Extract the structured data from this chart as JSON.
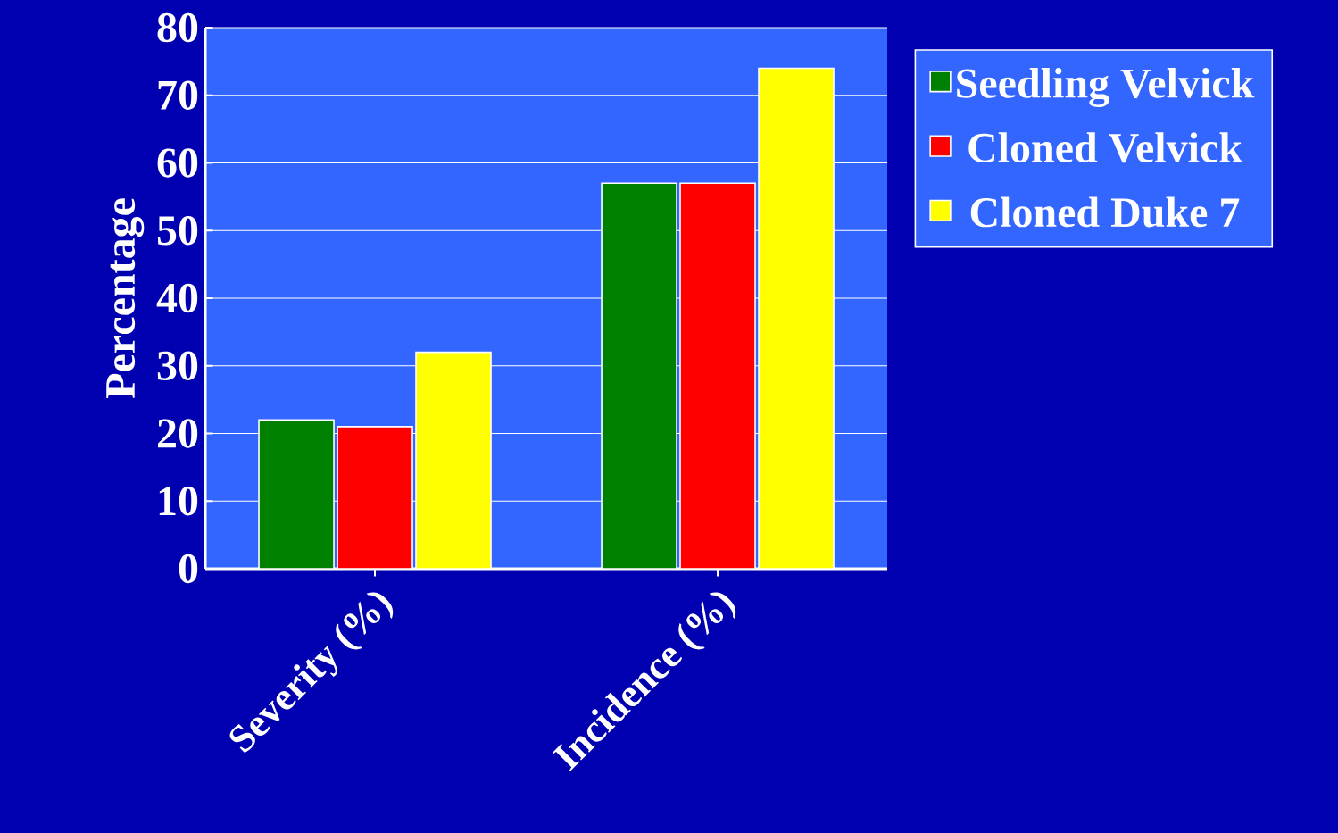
{
  "chart_data": {
    "type": "bar",
    "ylabel": "Percentage",
    "categories": [
      "Severity (%)",
      "Incidence (%)"
    ],
    "series": [
      {
        "name": "Seedling Velvick",
        "color": "#008000",
        "values": [
          22,
          57
        ]
      },
      {
        "name": "Cloned Velvick",
        "color": "#ff0000",
        "values": [
          21,
          57
        ]
      },
      {
        "name": "Cloned Duke 7",
        "color": "#ffff00",
        "values": [
          32,
          74
        ]
      }
    ],
    "ylim": [
      0,
      80
    ],
    "yticks": [
      0,
      10,
      20,
      30,
      40,
      50,
      60,
      70,
      80
    ],
    "grid": "y",
    "legend": "right"
  }
}
